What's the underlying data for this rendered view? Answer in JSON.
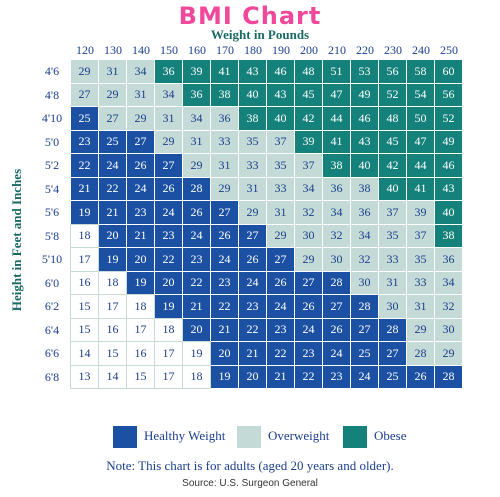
{
  "chart_data": {
    "type": "heatmap",
    "title": "BMI Chart",
    "xlabel": "Weight in Pounds",
    "ylabel": "Height in Feet and Inches",
    "x": [
      "120",
      "130",
      "140",
      "150",
      "160",
      "170",
      "180",
      "190",
      "200",
      "210",
      "220",
      "230",
      "240",
      "250"
    ],
    "y": [
      "4'6",
      "4'8",
      "4'10",
      "5'0",
      "5'2",
      "5'4",
      "5'6",
      "5'8",
      "5'10",
      "6'0",
      "6'2",
      "6'4",
      "6'6",
      "6'8"
    ],
    "values": [
      [
        29,
        31,
        34,
        36,
        39,
        41,
        43,
        46,
        48,
        51,
        53,
        56,
        58,
        60
      ],
      [
        27,
        29,
        31,
        34,
        36,
        38,
        40,
        43,
        45,
        47,
        49,
        52,
        54,
        56
      ],
      [
        25,
        27,
        29,
        31,
        34,
        36,
        38,
        40,
        42,
        44,
        46,
        48,
        50,
        52
      ],
      [
        23,
        25,
        27,
        29,
        31,
        33,
        35,
        37,
        39,
        41,
        43,
        45,
        47,
        49
      ],
      [
        22,
        24,
        26,
        27,
        29,
        31,
        33,
        35,
        37,
        38,
        40,
        42,
        44,
        46
      ],
      [
        21,
        22,
        24,
        26,
        28,
        29,
        31,
        33,
        34,
        36,
        38,
        40,
        41,
        43
      ],
      [
        19,
        21,
        23,
        24,
        26,
        27,
        29,
        31,
        32,
        34,
        36,
        37,
        39,
        40
      ],
      [
        18,
        20,
        21,
        23,
        24,
        26,
        27,
        29,
        30,
        32,
        34,
        35,
        37,
        38
      ],
      [
        17,
        19,
        20,
        22,
        23,
        24,
        26,
        27,
        29,
        30,
        32,
        33,
        35,
        36
      ],
      [
        16,
        18,
        19,
        20,
        22,
        23,
        24,
        26,
        27,
        28,
        30,
        31,
        33,
        34
      ],
      [
        15,
        17,
        18,
        19,
        21,
        22,
        23,
        24,
        26,
        27,
        28,
        30,
        31,
        32
      ],
      [
        15,
        16,
        17,
        18,
        20,
        21,
        22,
        23,
        24,
        26,
        27,
        28,
        29,
        30
      ],
      [
        14,
        15,
        16,
        17,
        19,
        20,
        21,
        22,
        23,
        24,
        25,
        27,
        28,
        29
      ],
      [
        13,
        14,
        15,
        17,
        18,
        19,
        20,
        21,
        22,
        23,
        24,
        25,
        26,
        28
      ]
    ],
    "categories_matrix": [
      "ooobbbbbbbbbbb",
      "oooobbbbbbbbbb",
      "hooooobbbbbbbb",
      "hhhooooobbbbbb",
      "hhhhooooobbbbb",
      "hhhhhoooooobbb",
      "hhhhhhooooooob",
      "uhhhhhhoooooob",
      "uhhhhhhhoooooo",
      "uuhhhhhhhhoooo",
      "uuuhhhhhhhhooo",
      "uuuuhhhhhhhhoo",
      "uuuuuhhhhhhhoo",
      "uuuuuhhhhhhhhh"
    ],
    "legend": [
      {
        "key": "h",
        "label": "Healthy Weight",
        "color": "#1b50a3"
      },
      {
        "key": "o",
        "label": "Overweight",
        "color": "#c3dad7"
      },
      {
        "key": "b",
        "label": "Obese",
        "color": "#14817b"
      }
    ],
    "colors": {
      "title": "#f0489a",
      "healthy": "#1b50a3",
      "overweight": "#c3dad7",
      "obese": "#14817b",
      "unshaded": "#ffffff",
      "text": "#1b3f8c"
    },
    "legend_position": "bottom"
  },
  "note": "Note: This chart is for adults (aged 20 years and older).",
  "source": "Source: U.S. Surgeon General"
}
